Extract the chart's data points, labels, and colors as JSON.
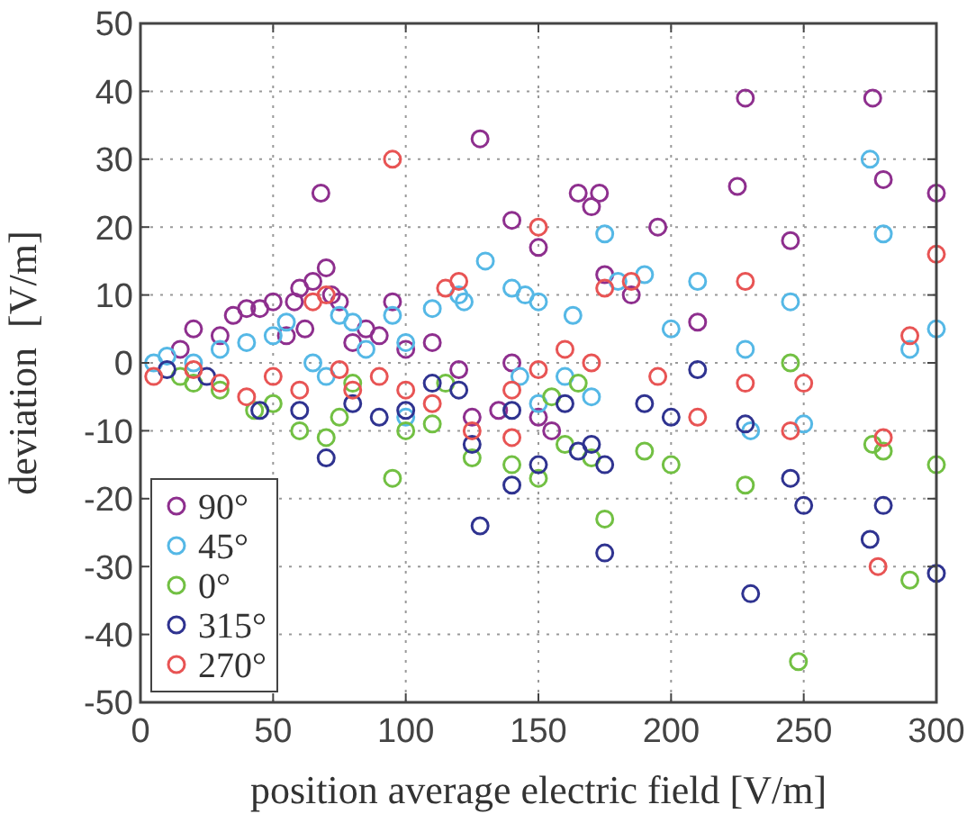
{
  "chart_data": {
    "type": "scatter",
    "xlabel": "position average electric field [V/m]",
    "ylabel": "deviation  [V/m]",
    "xlim": [
      0,
      300
    ],
    "ylim": [
      -50,
      50
    ],
    "xticks": [
      0,
      50,
      100,
      150,
      200,
      250,
      300
    ],
    "yticks": [
      -50,
      -40,
      -30,
      -20,
      -10,
      0,
      10,
      20,
      30,
      40,
      50
    ],
    "grid": true,
    "legend": "bottom left",
    "marker": "circle",
    "series": [
      {
        "name": "90°",
        "color": "#8e2f8e",
        "x": [
          15,
          20,
          30,
          35,
          40,
          45,
          50,
          55,
          58,
          60,
          62,
          65,
          68,
          70,
          72,
          75,
          80,
          85,
          90,
          95,
          100,
          110,
          120,
          125,
          128,
          135,
          140,
          150,
          155,
          165,
          170,
          173,
          175,
          185,
          195,
          210,
          225,
          228,
          245,
          276,
          280,
          300,
          150,
          140
        ],
        "values": [
          2,
          5,
          4,
          7,
          8,
          8,
          9,
          4,
          9,
          11,
          5,
          12,
          25,
          14,
          10,
          9,
          3,
          5,
          4,
          9,
          2,
          3,
          -1,
          -8,
          33,
          -7,
          21,
          17,
          -10,
          25,
          23,
          25,
          13,
          10,
          20,
          6,
          26,
          39,
          18,
          39,
          27,
          25,
          -8,
          0
        ]
      },
      {
        "name": "45°",
        "color": "#55b8e6",
        "x": [
          5,
          10,
          20,
          30,
          40,
          50,
          55,
          65,
          70,
          75,
          80,
          85,
          95,
          100,
          100,
          110,
          120,
          122,
          130,
          140,
          145,
          150,
          150,
          160,
          163,
          170,
          175,
          180,
          190,
          200,
          210,
          228,
          230,
          245,
          250,
          275,
          280,
          300,
          290,
          143
        ],
        "values": [
          0,
          1,
          0,
          2,
          3,
          4,
          6,
          0,
          -2,
          7,
          6,
          2,
          7,
          -8,
          3,
          8,
          10,
          9,
          15,
          11,
          10,
          -6,
          9,
          -2,
          7,
          -5,
          19,
          12,
          13,
          5,
          12,
          2,
          -10,
          9,
          -9,
          30,
          19,
          5,
          2,
          -2
        ]
      },
      {
        "name": "0°",
        "color": "#72c043",
        "x": [
          15,
          20,
          30,
          43,
          50,
          60,
          70,
          75,
          80,
          95,
          100,
          110,
          115,
          125,
          140,
          150,
          155,
          160,
          170,
          175,
          190,
          200,
          228,
          245,
          248,
          276,
          280,
          290,
          300,
          165
        ],
        "values": [
          -2,
          -3,
          -4,
          -7,
          -6,
          -10,
          -11,
          -8,
          -3,
          -17,
          -10,
          -9,
          -3,
          -14,
          -15,
          -17,
          -5,
          -12,
          -14,
          -23,
          -13,
          -15,
          -18,
          0,
          -44,
          -12,
          -13,
          -32,
          -15,
          -3
        ]
      },
      {
        "name": "315°",
        "color": "#2f3390",
        "x": [
          10,
          25,
          45,
          60,
          70,
          80,
          90,
          100,
          110,
          120,
          125,
          128,
          140,
          140,
          150,
          160,
          165,
          170,
          175,
          175,
          190,
          200,
          210,
          228,
          230,
          245,
          250,
          275,
          280,
          300
        ],
        "values": [
          -1,
          -2,
          -7,
          -7,
          -14,
          -6,
          -8,
          -7,
          -3,
          -4,
          -12,
          -24,
          -18,
          -7,
          -15,
          -6,
          -13,
          -12,
          -15,
          -28,
          -6,
          -8,
          -1,
          -9,
          -34,
          -17,
          -21,
          -26,
          -21,
          -31
        ]
      },
      {
        "name": "270°",
        "color": "#e85454",
        "x": [
          5,
          20,
          30,
          40,
          50,
          60,
          65,
          70,
          75,
          80,
          90,
          95,
          100,
          110,
          115,
          120,
          125,
          140,
          140,
          150,
          150,
          160,
          170,
          175,
          185,
          195,
          210,
          228,
          228,
          245,
          250,
          278,
          280,
          300,
          290
        ],
        "values": [
          -2,
          -1,
          -3,
          -5,
          -2,
          -4,
          9,
          10,
          -1,
          -4,
          -2,
          30,
          -4,
          -6,
          11,
          12,
          -10,
          -11,
          -4,
          20,
          -1,
          2,
          0,
          11,
          12,
          -2,
          -8,
          12,
          -3,
          -10,
          -3,
          -30,
          -11,
          16,
          4
        ]
      }
    ]
  }
}
